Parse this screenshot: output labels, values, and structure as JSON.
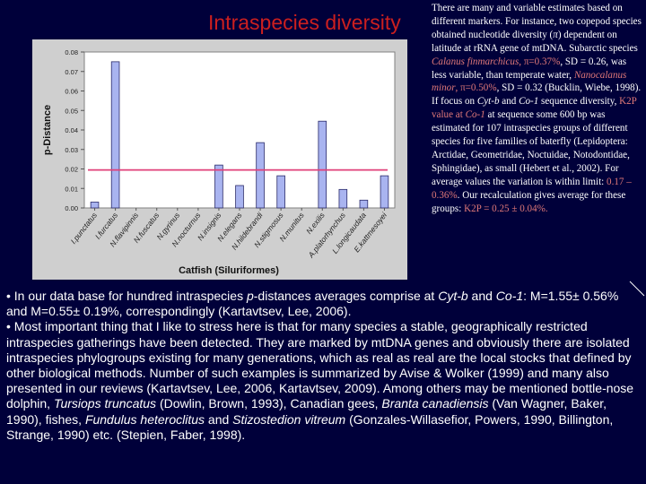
{
  "slide": {
    "title": "Intraspecies diversity",
    "side_text": [
      {
        "t": "There are many and variable estimates based on different markers. For instance, two copepod species obtained nucleotide diversity ("
      },
      {
        "t": "π",
        "i": true
      },
      {
        "t": ") dependent on latitude at rRNA gene of mtDNA. Subarctic species "
      },
      {
        "t": "Calanus finmarchicus",
        "i": true,
        "hl": true
      },
      {
        "t": ", π=0.37%",
        "hl": true
      },
      {
        "t": ", SD = 0.26, was less variable, than temperate water, "
      },
      {
        "t": "Nanocalanus minor",
        "i": true,
        "hl": true
      },
      {
        "t": ", π=0.50%",
        "hl": true
      },
      {
        "t": ", SD = 0.32 (Bucklin, Wiebe, 1998). If focus on "
      },
      {
        "t": "Cyt-b",
        "i": true
      },
      {
        "t": " and "
      },
      {
        "t": "Co-1",
        "i": true
      },
      {
        "t": " sequence diversity, "
      },
      {
        "t": "K2P value at ",
        "hl": true
      },
      {
        "t": "Co-1",
        "i": true,
        "hl": true
      },
      {
        "t": " at sequence some 600 bp was estimated for 107 intraspecies groups of different species for five families of baterfly (Lepidoptera: Arctidae, Geometridae, Noctuidae, Notodontidae, Sphingidae), as small (Hebert et al., 2002). For average values the variation is within limit: "
      },
      {
        "t": "0.17 – 0.36%",
        "hl": true
      },
      {
        "t": ". Our recalculation gives average for these groups: "
      },
      {
        "t": "K2P = 0.25 ± 0.04%.",
        "hl": true
      }
    ],
    "bottom_paragraphs": [
      [
        {
          "t": "• In our data base for hundred intraspecies "
        },
        {
          "t": "p",
          "i": true
        },
        {
          "t": "-distances averages comprise at "
        },
        {
          "t": "Cyt-b",
          "i": true
        },
        {
          "t": " and "
        },
        {
          "t": "Co-1",
          "i": true
        },
        {
          "t": ": M=1.55± 0.56% and M=0.55± 0.19%, correspondingly (Kartavtsev, Lee, 2006)."
        }
      ],
      [
        {
          "t": "• Most important thing that I like to stress here is that for many species a stable, geographically restricted intraspecies gatherings have been detected. They are marked by mtDNA genes and obviously there are isolated intraspecies phylogroups existing for many generations, which as real as real are the local stocks that defined by other biological methods. Number of such examples is summarized by Avise & Wolker (1999) and many also presented in our reviews (Kartavtsev, Lee, 2006, Kartavtsev, 2009). Among others may be mentioned bottle-nose dolphin, "
        },
        {
          "t": "Tursiops truncatus",
          "i": true
        },
        {
          "t": " (Dowlin, Brown, 1993), Canadian gees, "
        },
        {
          "t": "Branta canadiensis",
          "i": true
        },
        {
          "t": " (Van Wagner, Baker, 1990), fishes, "
        },
        {
          "t": "Fundulus heteroclitus",
          "i": true
        },
        {
          "t": " and "
        },
        {
          "t": "Stizostedion vitreum",
          "i": true
        },
        {
          "t": " (Gonzales-Willasefior, Powers, 1990, Billington, Strange, 1990) etc. (Stepien, Faber, 1998)."
        }
      ]
    ]
  },
  "colors": {
    "background": "#00003a",
    "title": "#cc1f1f",
    "highlight": "#e07878",
    "bar": "#a9b4f0",
    "reference_line": "#e0407a"
  },
  "chart_data": {
    "type": "bar",
    "categories": [
      "I.punctatus",
      "I.furcatus",
      "N.flavipinnis",
      "N.fuscatus",
      "N.gyrinus",
      "N.nocturnus",
      "N.insignis",
      "N.elegans",
      "N.hildebrandi",
      "N.stigmosus",
      "N.munitus",
      "N.exilis",
      "A.platorhynchus",
      "L.longicaudata",
      "E.kattmesoyei"
    ],
    "values": [
      0.003,
      0.075,
      0.0,
      0.0,
      0.0,
      0.0,
      0.022,
      0.0115,
      0.0335,
      0.0165,
      0.0,
      0.0445,
      0.0095,
      0.004,
      0.0165
    ],
    "reference_value": 0.0195,
    "title": "",
    "xlabel": "Catfish (Siluriformes)",
    "ylabel": "p-Distance",
    "ylim": [
      0,
      0.08
    ],
    "yticks": [
      "0.00",
      "0.01",
      "0.02",
      "0.03",
      "0.04",
      "0.05",
      "0.06",
      "0.07",
      "0.08"
    ],
    "grid": false,
    "legend": "none"
  }
}
